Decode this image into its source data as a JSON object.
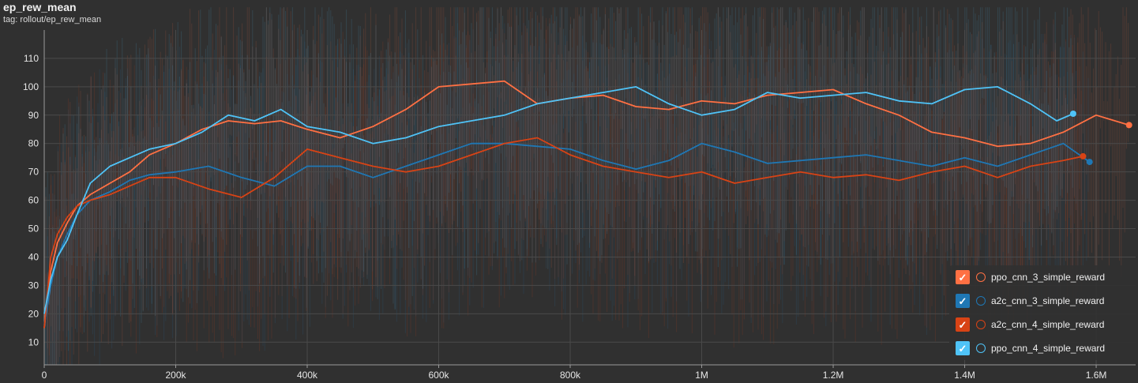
{
  "header": {
    "title": "ep_rew_mean",
    "tag": "tag: rollout/ep_rew_mean"
  },
  "colors": {
    "background": "#303030",
    "grid": "#4a4a4a",
    "axis": "#9a9a9a",
    "tick_text": "#e6e6e6"
  },
  "chart_data": {
    "type": "line",
    "title": "ep_rew_mean",
    "xlim": [
      0,
      1660000
    ],
    "ylim": [
      2,
      120
    ],
    "x_ticks": [
      0,
      200000,
      400000,
      600000,
      800000,
      1000000,
      1200000,
      1400000,
      1600000
    ],
    "x_tick_labels": [
      "0",
      "200k",
      "400k",
      "600k",
      "800k",
      "1M",
      "1.2M",
      "1.4M",
      "1.6M"
    ],
    "y_ticks": [
      10,
      20,
      30,
      40,
      50,
      60,
      70,
      80,
      90,
      100,
      110
    ],
    "y_tick_labels": [
      "10",
      "20",
      "30",
      "40",
      "50",
      "60",
      "70",
      "80",
      "90",
      "100",
      "110"
    ],
    "grid": true,
    "legend_position": "bottom-right",
    "series": [
      {
        "name": "ppo_cnn_3_simple_reward",
        "color": "#ff7043",
        "x": [
          0,
          10000,
          20000,
          35000,
          50000,
          70000,
          100000,
          130000,
          160000,
          200000,
          240000,
          280000,
          320000,
          360000,
          400000,
          450000,
          500000,
          550000,
          600000,
          650000,
          700000,
          750000,
          800000,
          850000,
          900000,
          950000,
          1000000,
          1050000,
          1100000,
          1150000,
          1200000,
          1250000,
          1300000,
          1350000,
          1400000,
          1450000,
          1500000,
          1550000,
          1600000,
          1650000
        ],
        "y": [
          15,
          35,
          45,
          52,
          58,
          62,
          66,
          70,
          76,
          80,
          85,
          88,
          87,
          88,
          85,
          82,
          86,
          92,
          100,
          101,
          102,
          94,
          96,
          97,
          93,
          92,
          95,
          94,
          97,
          98,
          99,
          94,
          90,
          84,
          82,
          79,
          80,
          84,
          90,
          86.5
        ]
      },
      {
        "name": "a2c_cnn_3_simple_reward",
        "color": "#1f77b4",
        "x": [
          0,
          10000,
          20000,
          35000,
          50000,
          70000,
          100000,
          130000,
          160000,
          200000,
          250000,
          300000,
          350000,
          400000,
          450000,
          500000,
          550000,
          600000,
          650000,
          700000,
          750000,
          800000,
          850000,
          900000,
          950000,
          1000000,
          1050000,
          1100000,
          1150000,
          1200000,
          1250000,
          1300000,
          1350000,
          1400000,
          1450000,
          1500000,
          1550000,
          1590000
        ],
        "y": [
          16,
          30,
          40,
          48,
          55,
          60,
          63,
          67,
          69,
          70,
          72,
          68,
          65,
          72,
          72,
          68,
          72,
          76,
          80,
          80,
          79,
          78,
          74,
          71,
          74,
          80,
          77,
          73,
          74,
          75,
          76,
          74,
          72,
          75,
          72,
          76,
          80,
          73.5
        ]
      },
      {
        "name": "a2c_cnn_4_simple_reward",
        "color": "#d84315",
        "x": [
          0,
          10000,
          20000,
          35000,
          50000,
          70000,
          100000,
          130000,
          160000,
          200000,
          250000,
          300000,
          350000,
          400000,
          450000,
          500000,
          550000,
          600000,
          650000,
          700000,
          750000,
          800000,
          850000,
          900000,
          950000,
          1000000,
          1050000,
          1100000,
          1150000,
          1200000,
          1250000,
          1300000,
          1350000,
          1400000,
          1450000,
          1500000,
          1550000,
          1580000
        ],
        "y": [
          15,
          40,
          48,
          54,
          58,
          60,
          62,
          65,
          68,
          68,
          64,
          61,
          68,
          78,
          75,
          72,
          70,
          72,
          76,
          80,
          82,
          76,
          72,
          70,
          68,
          70,
          66,
          68,
          70,
          68,
          69,
          67,
          70,
          72,
          68,
          72,
          74,
          75.5
        ]
      },
      {
        "name": "ppo_cnn_4_simple_reward",
        "color": "#4fc3f7",
        "x": [
          0,
          10000,
          20000,
          35000,
          50000,
          70000,
          100000,
          130000,
          160000,
          200000,
          240000,
          280000,
          320000,
          360000,
          400000,
          450000,
          500000,
          550000,
          600000,
          650000,
          700000,
          750000,
          800000,
          850000,
          900000,
          950000,
          1000000,
          1050000,
          1100000,
          1150000,
          1200000,
          1250000,
          1300000,
          1350000,
          1400000,
          1450000,
          1500000,
          1540000,
          1565000
        ],
        "y": [
          20,
          32,
          40,
          46,
          55,
          66,
          72,
          75,
          78,
          80,
          84,
          90,
          88,
          92,
          86,
          84,
          80,
          82,
          86,
          88,
          90,
          94,
          96,
          98,
          100,
          94,
          90,
          92,
          98,
          96,
          97,
          98,
          95,
          94,
          99,
          100,
          94,
          88,
          90.5
        ]
      }
    ]
  },
  "legend": {
    "items": [
      {
        "label": "ppo_cnn_3_simple_reward",
        "color": "#ff7043",
        "checked": true
      },
      {
        "label": "a2c_cnn_3_simple_reward",
        "color": "#1f77b4",
        "checked": true
      },
      {
        "label": "a2c_cnn_4_simple_reward",
        "color": "#d84315",
        "checked": true
      },
      {
        "label": "ppo_cnn_4_simple_reward",
        "color": "#4fc3f7",
        "checked": true
      }
    ]
  }
}
